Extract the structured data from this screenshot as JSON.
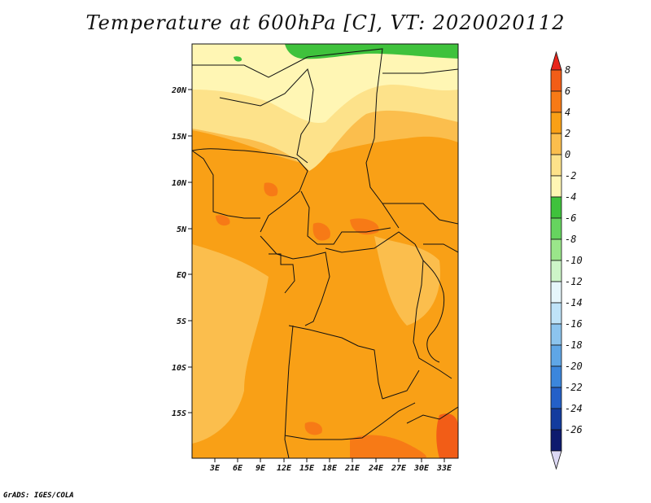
{
  "title": "Temperature at 600hPa [C], VT: 2020020112",
  "credit": "GrADS: IGES/COLA",
  "map": {
    "lat_labels": [
      "20N",
      "15N",
      "10N",
      "5N",
      "EQ",
      "5S",
      "10S",
      "15S"
    ],
    "lon_labels": [
      "3E",
      "6E",
      "9E",
      "12E",
      "15E",
      "18E",
      "21E",
      "24E",
      "27E",
      "30E",
      "33E"
    ]
  },
  "colorbar": {
    "labels": [
      "8",
      "6",
      "4",
      "2",
      "0",
      "-2",
      "-4",
      "-6",
      "-8",
      "-10",
      "-12",
      "-14",
      "-16",
      "-18",
      "-20",
      "-22",
      "-24",
      "-26"
    ],
    "colors": [
      "#e8251c",
      "#f25d17",
      "#f77a16",
      "#f9a016",
      "#fbbe4d",
      "#fde28a",
      "#fff6b4",
      "#3fc23c",
      "#66d45f",
      "#9ae68a",
      "#cdf5c8",
      "#e6f6fb",
      "#bfe3f8",
      "#8cc4ee",
      "#5fa6e6",
      "#3b86dc",
      "#2460c8",
      "#133c9e",
      "#0d1a6e",
      "#dcd8f4"
    ]
  },
  "colors": {
    "dominant": "#f9a016",
    "warm": "#f77a16",
    "cool": "#fde28a",
    "coolest": "#3fc23c",
    "border": "#111111"
  }
}
